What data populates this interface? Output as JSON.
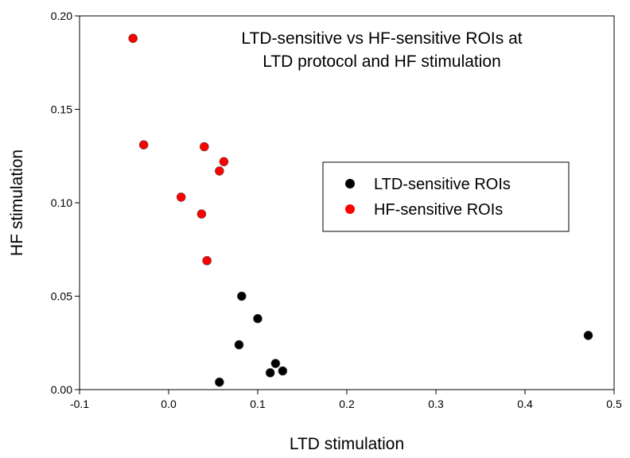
{
  "chart_data": {
    "type": "scatter",
    "title_lines": [
      "LTD-sensitive vs HF-sensitive ROIs at",
      "LTD protocol and HF stimulation"
    ],
    "xlabel": "LTD stimulation",
    "ylabel": "HF stimulation",
    "xlim": [
      -0.1,
      0.5
    ],
    "ylim": [
      0,
      0.2
    ],
    "xticks": [
      -0.1,
      0.0,
      0.1,
      0.2,
      0.3,
      0.4,
      0.5
    ],
    "xtick_labels": [
      "-0.1",
      "0.0",
      "0.1",
      "0.2",
      "0.3",
      "0.4",
      "0.5"
    ],
    "yticks": [
      0,
      0.05,
      0.1,
      0.15,
      0.2
    ],
    "ytick_labels": [
      "0.00",
      "0.05",
      "0.10",
      "0.15",
      "0.20"
    ],
    "grid": false,
    "legend_position": "right",
    "series": [
      {
        "name": "LTD-sensitive ROIs",
        "color": "#000000",
        "points": [
          {
            "x": 0.082,
            "y": 0.05
          },
          {
            "x": 0.1,
            "y": 0.038
          },
          {
            "x": 0.079,
            "y": 0.024
          },
          {
            "x": 0.12,
            "y": 0.014
          },
          {
            "x": 0.128,
            "y": 0.01
          },
          {
            "x": 0.114,
            "y": 0.009
          },
          {
            "x": 0.057,
            "y": 0.004
          },
          {
            "x": 0.471,
            "y": 0.029
          }
        ]
      },
      {
        "name": "HF-sensitive ROIs",
        "color": "#ff0000",
        "points": [
          {
            "x": -0.04,
            "y": 0.188
          },
          {
            "x": -0.028,
            "y": 0.131
          },
          {
            "x": 0.04,
            "y": 0.13
          },
          {
            "x": 0.062,
            "y": 0.122
          },
          {
            "x": 0.057,
            "y": 0.117
          },
          {
            "x": 0.014,
            "y": 0.103
          },
          {
            "x": 0.037,
            "y": 0.094
          },
          {
            "x": 0.043,
            "y": 0.069
          }
        ]
      }
    ]
  }
}
